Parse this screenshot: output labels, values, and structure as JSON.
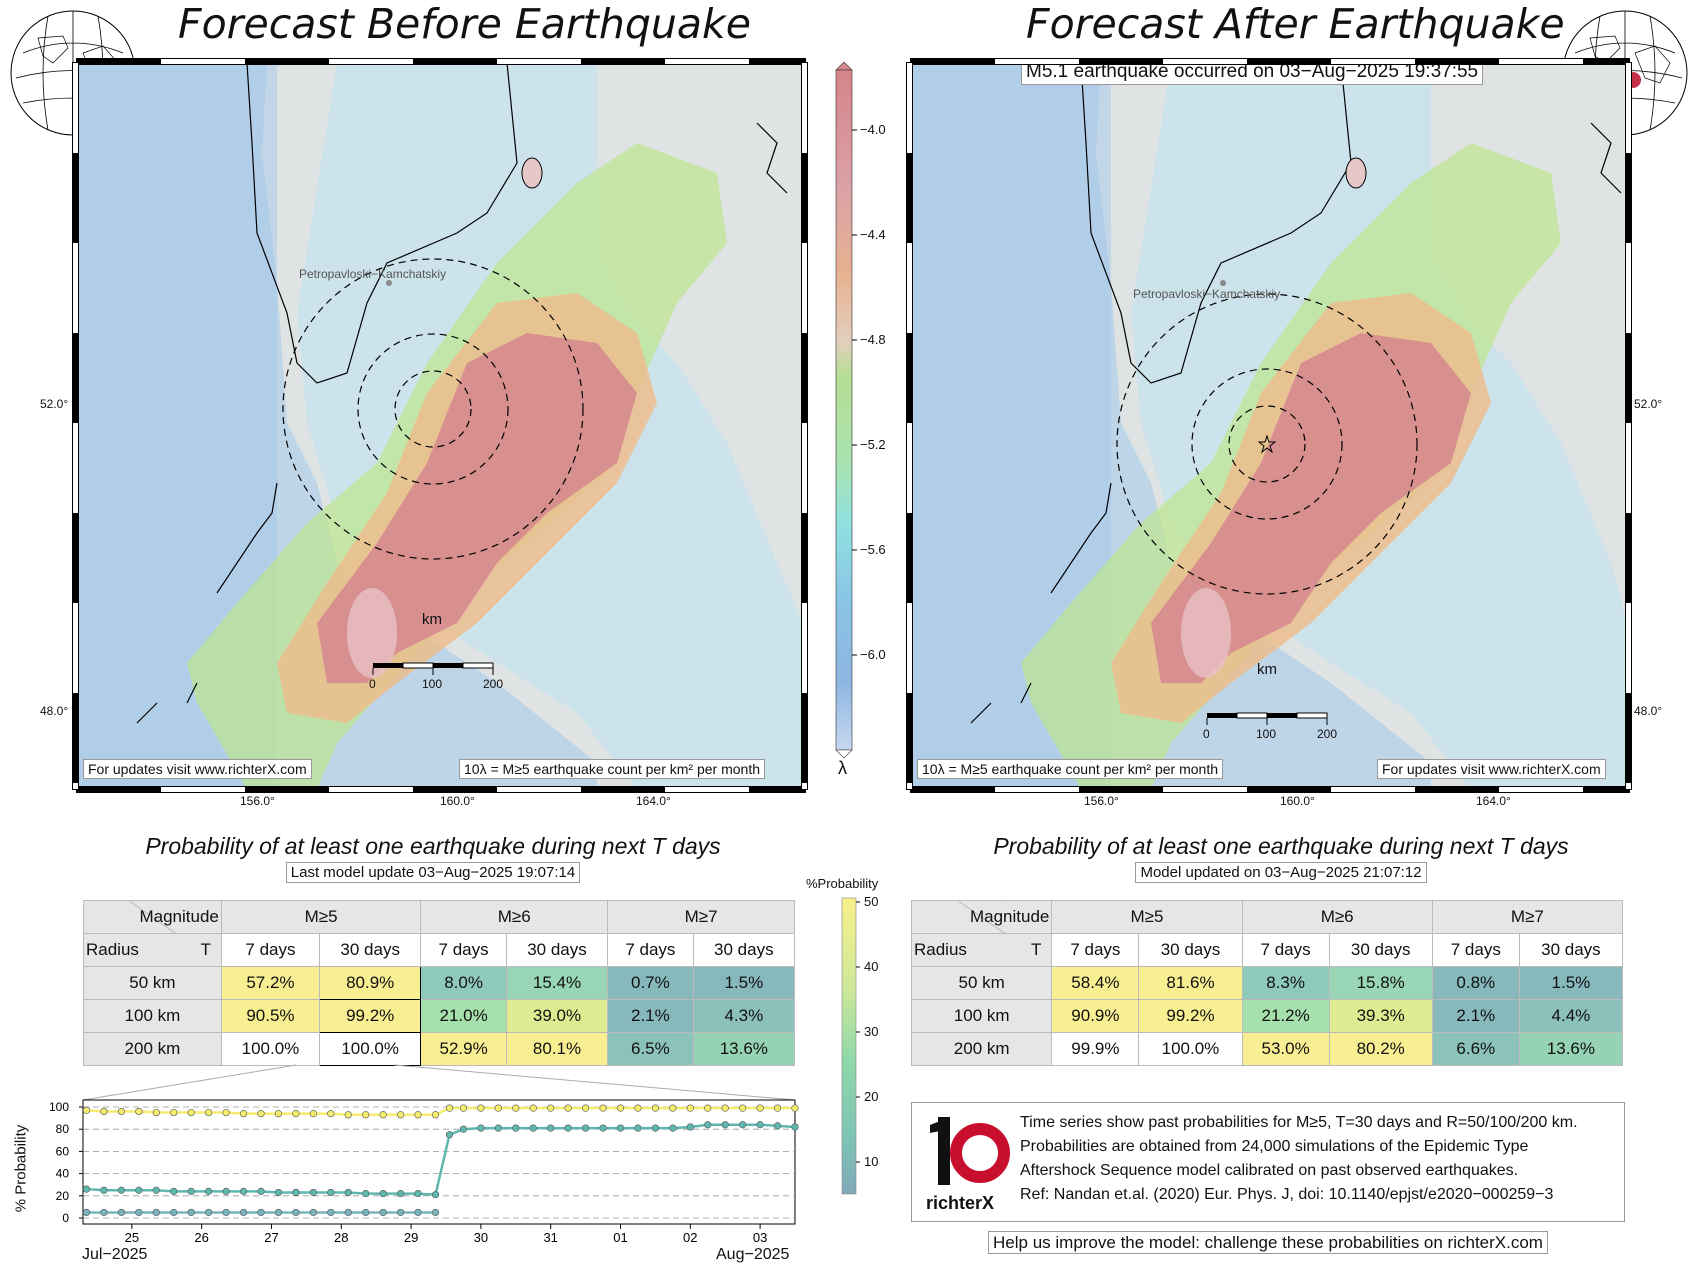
{
  "left_panel": {
    "title": "Forecast Before Earthquake",
    "city_label": "Petropavloski−Kamchatskiy",
    "km_label": "km",
    "scale_ticks": [
      "0",
      "100",
      "200"
    ],
    "footer_left": "For updates visit www.richterX.com",
    "footer_right": "10λ = M≥5 earthquake count per km² per month",
    "lat_ticks": [
      "52.0°",
      "48.0°"
    ],
    "lon_ticks": [
      "156.0°",
      "160.0°",
      "164.0°"
    ]
  },
  "right_panel": {
    "title": "Forecast After Earthquake",
    "event_label": "M5.1 earthquake occurred on 03−Aug−2025 19:37:55",
    "city_label": "Petropavloski−Kamchatskiy",
    "km_label": "km",
    "scale_ticks": [
      "0",
      "100",
      "200"
    ],
    "footer_left": "10λ = M≥5 earthquake count per km² per month",
    "footer_right": "For updates visit www.richterX.com",
    "lat_ticks": [
      "52.0°",
      "48.0°"
    ],
    "lon_ticks": [
      "156.0°",
      "160.0°",
      "164.0°"
    ]
  },
  "colorbar": {
    "label": "λ",
    "ticks": [
      "−4.0",
      "−4.4",
      "−4.8",
      "−5.2",
      "−5.6",
      "−6.0"
    ]
  },
  "prob_colorbar": {
    "label": "%Probability",
    "ticks": [
      "50",
      "40",
      "30",
      "20",
      "10"
    ]
  },
  "left_table": {
    "title": "Probability of at least one earthquake during next T days",
    "subtitle": "Last model update 03−Aug−2025 19:07:14",
    "magnitude_label": "Magnitude",
    "radius_label": "Radius",
    "t_label": "T",
    "mags": [
      "M≥5",
      "M≥6",
      "M≥7"
    ],
    "periods": [
      "7 days",
      "30 days",
      "7 days",
      "30 days",
      "7 days",
      "30 days"
    ],
    "rows": [
      {
        "radius": "50 km",
        "values": [
          "57.2%",
          "80.9%",
          "8.0%",
          "15.4%",
          "0.7%",
          "1.5%"
        ]
      },
      {
        "radius": "100 km",
        "values": [
          "90.5%",
          "99.2%",
          "21.0%",
          "39.0%",
          "2.1%",
          "4.3%"
        ]
      },
      {
        "radius": "200 km",
        "values": [
          "100.0%",
          "100.0%",
          "52.9%",
          "80.1%",
          "6.5%",
          "13.6%"
        ]
      }
    ]
  },
  "right_table": {
    "title": "Probability of at least one earthquake during next T days",
    "subtitle": "Model updated on 03−Aug−2025 21:07:12",
    "magnitude_label": "Magnitude",
    "radius_label": "Radius",
    "t_label": "T",
    "mags": [
      "M≥5",
      "M≥6",
      "M≥7"
    ],
    "periods": [
      "7 days",
      "30 days",
      "7 days",
      "30 days",
      "7 days",
      "30 days"
    ],
    "rows": [
      {
        "radius": "50 km",
        "values": [
          "58.4%",
          "81.6%",
          "8.3%",
          "15.8%",
          "0.8%",
          "1.5%"
        ]
      },
      {
        "radius": "100 km",
        "values": [
          "90.9%",
          "99.2%",
          "21.2%",
          "39.3%",
          "2.1%",
          "4.4%"
        ]
      },
      {
        "radius": "200 km",
        "values": [
          "99.9%",
          "100.0%",
          "53.0%",
          "80.2%",
          "6.6%",
          "13.6%"
        ]
      }
    ]
  },
  "info": {
    "logo_text": "richterX",
    "lines": [
      "Time series show past probabilities for M≥5, T=30 days and R=50/100/200 km.",
      "Probabilities are obtained from 24,000 simulations of the Epidemic Type",
      "Aftershock Sequence model calibrated on past observed earthquakes.",
      "Ref: Nandan et.al. (2020) Eur. Phys. J, doi: 10.1140/epjst/e2020−000259−3"
    ],
    "help": "Help us improve the model: challenge these probabilities on richterX.com"
  },
  "chart_data": {
    "type": "line",
    "ylabel": "% Probability",
    "ylim": [
      0,
      100
    ],
    "yticks": [
      0,
      20,
      40,
      60,
      80,
      100
    ],
    "xticks": [
      "25",
      "26",
      "27",
      "28",
      "29",
      "30",
      "31",
      "01",
      "02",
      "03"
    ],
    "x_month_left": "Jul−2025",
    "x_month_right": "Aug−2025",
    "x_day_range": [
      24.3,
      34.5
    ],
    "grid": true,
    "series": [
      {
        "color": "#f3ec6e",
        "x": [
          24.35,
          24.6,
          24.85,
          25.1,
          25.35,
          25.6,
          25.85,
          26.1,
          26.35,
          26.6,
          26.85,
          27.1,
          27.35,
          27.6,
          27.85,
          28.1,
          28.35,
          28.6,
          28.85,
          29.1,
          29.35,
          29.55,
          29.75,
          30.0,
          30.25,
          30.5,
          30.75,
          31.0,
          31.25,
          31.5,
          31.75,
          32.0,
          32.25,
          32.5,
          32.75,
          33.0,
          33.25,
          33.5,
          33.75,
          34.0,
          34.25,
          34.5
        ],
        "values": [
          97,
          96,
          96,
          96,
          95,
          95,
          95,
          95,
          95,
          94,
          94,
          94,
          94,
          94,
          94,
          93,
          93,
          93,
          93,
          93,
          93,
          99,
          99,
          99,
          99,
          99,
          99,
          99,
          99,
          99,
          99,
          99,
          99,
          99,
          99,
          99,
          99,
          99,
          99,
          99,
          99,
          99
        ]
      },
      {
        "color": "#5fb8b0",
        "x": [
          24.35,
          24.6,
          24.85,
          25.1,
          25.35,
          25.6,
          25.85,
          26.1,
          26.35,
          26.6,
          26.85,
          27.1,
          27.35,
          27.6,
          27.85,
          28.1,
          28.35,
          28.6,
          28.85,
          29.1,
          29.35,
          29.55,
          29.75,
          30.0,
          30.25,
          30.5,
          30.75,
          31.0,
          31.25,
          31.5,
          31.75,
          32.0,
          32.25,
          32.5,
          32.75,
          33.0,
          33.25,
          33.5,
          33.75,
          34.0,
          34.25,
          34.5
        ],
        "values": [
          26,
          25,
          25,
          25,
          25,
          24,
          24,
          24,
          24,
          24,
          24,
          23,
          23,
          23,
          23,
          23,
          22,
          22,
          22,
          22,
          21,
          75,
          80,
          81,
          81,
          81,
          81,
          81,
          81,
          81,
          81,
          81,
          81,
          81,
          81,
          82,
          84,
          84,
          84,
          84,
          83,
          82
        ]
      },
      {
        "color": "#79b4bc",
        "x": [
          24.35,
          24.6,
          24.85,
          25.1,
          25.35,
          25.6,
          25.85,
          26.1,
          26.35,
          26.6,
          26.85,
          27.1,
          27.35,
          27.6,
          27.85,
          28.1,
          28.35,
          28.6,
          28.85,
          29.1,
          29.35
        ],
        "values": [
          5,
          5,
          5,
          5,
          5,
          5,
          5,
          5,
          5,
          5,
          5,
          5,
          5,
          5,
          5,
          5,
          5,
          5,
          5,
          5,
          5
        ]
      }
    ]
  }
}
